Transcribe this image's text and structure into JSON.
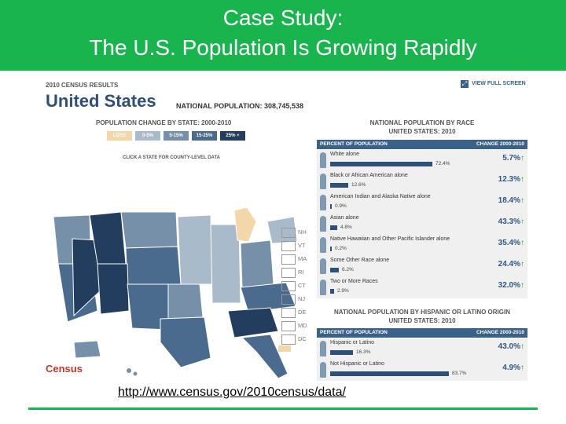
{
  "slide": {
    "title_line1": "Case Study:",
    "title_line2": "The U.S. Population Is Growing Rapidly",
    "link": "http://www.census.gov/2010census/data/",
    "colors": {
      "banner": "#19b44e",
      "accent_blue": "#2e4f78",
      "green_arrow": "#2aa13c"
    }
  },
  "census": {
    "eyebrow": "2010 CENSUS RESULTS",
    "country": "United States",
    "national_population_label": "NATIONAL POPULATION: 308,745,538",
    "full_screen_label": "VIEW FULL SCREEN",
    "full_screen_icon": "expand-icon",
    "map_title": "POPULATION CHANGE BY STATE: 2000-2010",
    "legend": [
      {
        "label": "LOSS",
        "color": "#f3d6a9"
      },
      {
        "label": "0-5%",
        "color": "#a9bacb"
      },
      {
        "label": "5-15%",
        "color": "#7690aa"
      },
      {
        "label": "15-25%",
        "color": "#4a6a8e"
      },
      {
        "label": "25% +",
        "color": "#233d5e"
      }
    ],
    "map_instruction": "CLICK A STATE FOR COUNTY-LEVEL DATA",
    "small_states": [
      "NH",
      "VT",
      "MA",
      "RI",
      "CT",
      "NJ",
      "DE",
      "MD",
      "DC"
    ],
    "logo_text": "Census",
    "race": {
      "title": "NATIONAL POPULATION BY RACE",
      "subtitle": "UNITED STATES: 2010",
      "col_left": "PERCENT OF POPULATION",
      "col_right": "CHANGE 2000-2010",
      "rows": [
        {
          "name": "White alone",
          "pct": "72.4%",
          "pct_value": 72.4,
          "change": "5.7%"
        },
        {
          "name": "Black or African American alone",
          "pct": "12.6%",
          "pct_value": 12.6,
          "change": "12.3%"
        },
        {
          "name": "American Indian and Alaska Native alone",
          "pct": "0.9%",
          "pct_value": 0.9,
          "change": "18.4%"
        },
        {
          "name": "Asian alone",
          "pct": "4.8%",
          "pct_value": 4.8,
          "change": "43.3%"
        },
        {
          "name": "Native Hawaiian and Other Pacific Islander alone",
          "pct": "0.2%",
          "pct_value": 0.2,
          "change": "35.4%"
        },
        {
          "name": "Some Other Race alone",
          "pct": "6.2%",
          "pct_value": 6.2,
          "change": "24.4%"
        },
        {
          "name": "Two or More Races",
          "pct": "2.9%",
          "pct_value": 2.9,
          "change": "32.0%"
        }
      ]
    },
    "hispanic": {
      "title": "NATIONAL POPULATION BY HISPANIC OR LATINO ORIGIN",
      "subtitle": "UNITED STATES: 2010",
      "col_left": "PERCENT OF POPULATION",
      "col_right": "CHANGE 2000-2010",
      "rows": [
        {
          "name": "Hispanic or Latino",
          "pct": "16.3%",
          "pct_value": 16.3,
          "change": "43.0%"
        },
        {
          "name": "Not Hispanic or Latino",
          "pct": "83.7%",
          "pct_value": 83.7,
          "change": "4.9%"
        }
      ]
    }
  }
}
